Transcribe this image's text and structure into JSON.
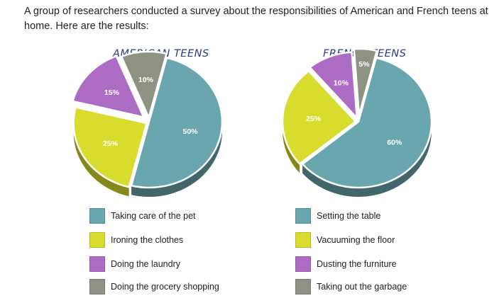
{
  "intro_text": "A group of researchers conducted a survey about the responsibilities of American and French teens at home. Here are the results:",
  "chart_data": [
    {
      "type": "pie",
      "title": "AMERICAN TEENS",
      "slices": [
        {
          "label": "Taking care of the pet",
          "value": 50,
          "value_label": "50%",
          "color": "#6aa6ad"
        },
        {
          "label": "Ironing the clothes",
          "value": 25,
          "value_label": "25%",
          "color": "#d8dc2c"
        },
        {
          "label": "Doing the laundry",
          "value": 15,
          "value_label": "15%",
          "color": "#ad6cc4"
        },
        {
          "label": "Doing the grocery shopping",
          "value": 10,
          "value_label": "10%",
          "color": "#8d9283"
        }
      ]
    },
    {
      "type": "pie",
      "title": "FRENCH TEENS",
      "slices": [
        {
          "label": "Setting the table",
          "value": 60,
          "value_label": "60%",
          "color": "#6aa6ad"
        },
        {
          "label": "Vacuuming the floor",
          "value": 25,
          "value_label": "25%",
          "color": "#d8dc2c"
        },
        {
          "label": "Dusting the furniture",
          "value": 10,
          "value_label": "10%",
          "color": "#ad6cc4"
        },
        {
          "label": "Taking out the garbage",
          "value": 5,
          "value_label": "5%",
          "color": "#8d9283"
        }
      ]
    }
  ]
}
